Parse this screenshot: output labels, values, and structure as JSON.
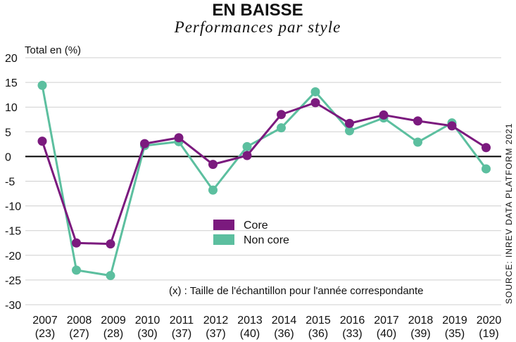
{
  "chart_data": {
    "type": "line",
    "title": "EN BAISSE",
    "subtitle": "Performances par style",
    "ylabel": "Total en (%)",
    "ylim": [
      -30,
      20
    ],
    "yticks": [
      "20",
      "15",
      "10",
      "5",
      "0",
      "-5",
      "-10",
      "-15",
      "-20",
      "-25",
      "-30"
    ],
    "categories": [
      "2007",
      "2008",
      "2009",
      "2010",
      "2011",
      "2012",
      "2013",
      "2014",
      "2015",
      "2016",
      "2017",
      "2018",
      "2019",
      "2020"
    ],
    "sample_sizes": [
      "(23)",
      "(27)",
      "(28)",
      "(30)",
      "(37)",
      "(37)",
      "(40)",
      "(36)",
      "(36)",
      "(33)",
      "(40)",
      "(39)",
      "(35)",
      "(19)"
    ],
    "series": [
      {
        "name": "Core",
        "color": "#7b1a7e",
        "values": [
          3.1,
          -17.5,
          -17.7,
          2.6,
          3.8,
          -1.6,
          0.2,
          8.5,
          10.9,
          6.7,
          8.4,
          7.2,
          6.2,
          1.8
        ]
      },
      {
        "name": "Non core",
        "color": "#5cbf9f",
        "values": [
          14.4,
          -23.0,
          -24.1,
          2.2,
          3.0,
          -6.8,
          2.0,
          5.8,
          13.1,
          5.2,
          7.8,
          2.9,
          6.8,
          -2.5
        ]
      }
    ],
    "grid": true,
    "legend_position": "center",
    "note": "(x) : Taille de l'échantillon pour l'année correspondante",
    "source": "SOURCE: INREV DATA PLATFORM 2021"
  }
}
